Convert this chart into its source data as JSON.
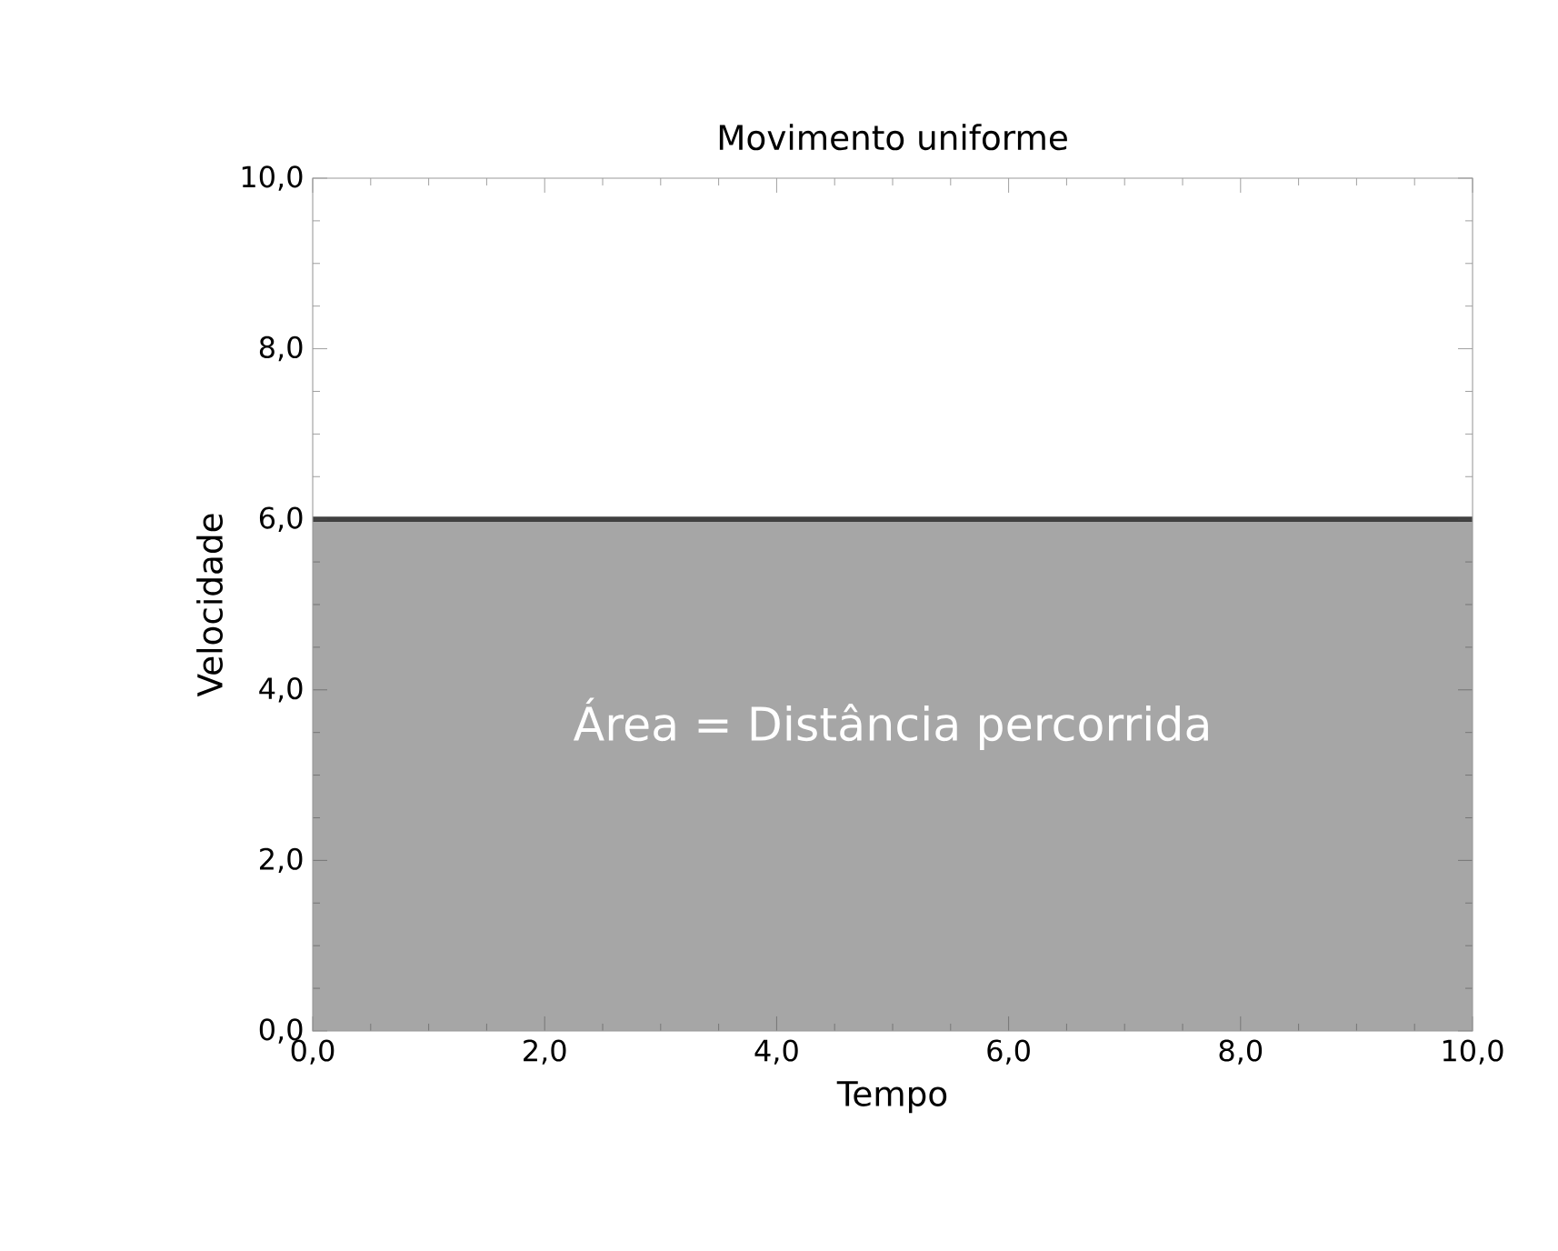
{
  "chart_data": {
    "type": "area",
    "title": "Movimento uniforme",
    "xlabel": "Tempo",
    "ylabel": "Velocidade",
    "annotations": [
      "Área = Distância percorrida"
    ],
    "x": [
      0,
      10
    ],
    "series": [
      {
        "color": "#a6a6a6",
        "values": [
          6,
          6
        ]
      }
    ],
    "xlim": [
      0,
      10
    ],
    "ylim": [
      0,
      10
    ],
    "xticks": [
      {
        "value": 0,
        "label": "0,0"
      },
      {
        "value": 2,
        "label": "2,0"
      },
      {
        "value": 4,
        "label": "4,0"
      },
      {
        "value": 6,
        "label": "6,0"
      },
      {
        "value": 8,
        "label": "8,0"
      },
      {
        "value": 10,
        "label": "10,0"
      }
    ],
    "yticks": [
      {
        "value": 0,
        "label": "0,0"
      },
      {
        "value": 2,
        "label": "2,0"
      },
      {
        "value": 4,
        "label": "4,0"
      },
      {
        "value": 6,
        "label": "6,0"
      },
      {
        "value": 8,
        "label": "8,0"
      },
      {
        "value": 10,
        "label": "10,0"
      }
    ]
  }
}
